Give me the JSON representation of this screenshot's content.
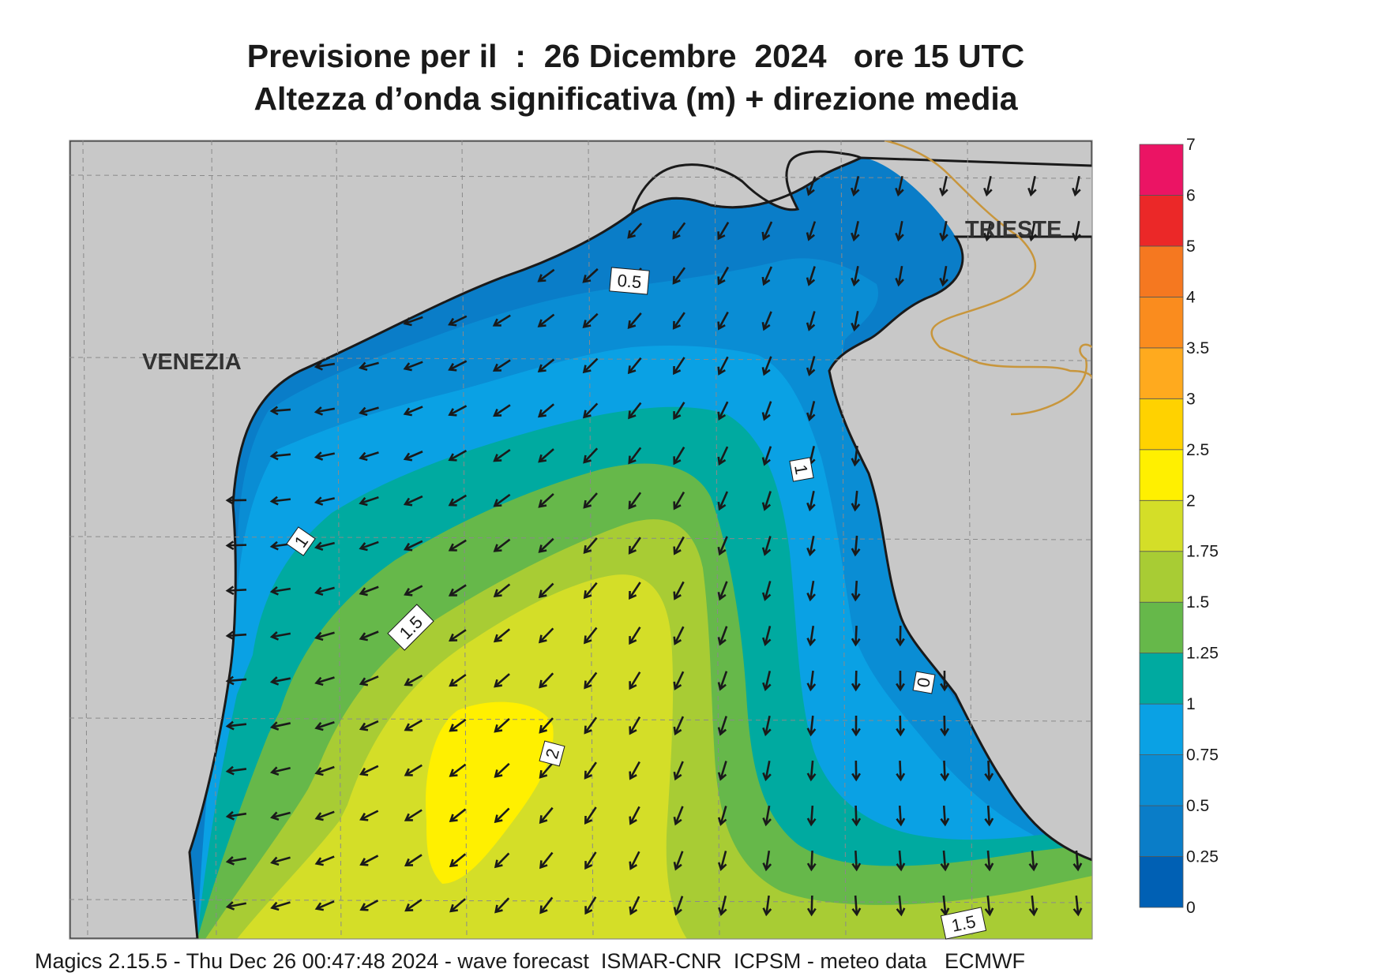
{
  "title_line1": "Previsione per il  :  26 Dicembre  2024   ore 15 UTC",
  "title_line2": "Altezza d’onda significativa (m) + direzione media",
  "footer": "Magics 2.15.5 - Thu Dec 26 00:47:48 2024 - wave forecast  ISMAR-CNR  ICPSM - meteo data   ECMWF",
  "cities": [
    {
      "name": "VENEZIA"
    },
    {
      "name": "TRIESTE"
    }
  ],
  "contour_labels": [
    "0.5",
    "1",
    "1",
    "1.5",
    "2",
    "1.5",
    "0"
  ],
  "legend": {
    "labels": [
      "0",
      "0.25",
      "0.5",
      "0.75",
      "1",
      "1.25",
      "1.5",
      "1.75",
      "2",
      "2.5",
      "3",
      "3.5",
      "4",
      "5",
      "6",
      "7"
    ],
    "colors": [
      "#0060b4",
      "#0a7dc8",
      "#0a8dd4",
      "#0aa1e4",
      "#00aaa0",
      "#66b84a",
      "#a8cc34",
      "#d4de28",
      "#fff000",
      "#ffd200",
      "#ffaa1e",
      "#fa8c1e",
      "#f57820",
      "#eb2828",
      "#eb1464"
    ]
  },
  "colors": {
    "land": "#c8c8c8",
    "coastline": "#1a1a1a",
    "border": "#c8963c",
    "grid": "#8a8a8a",
    "arrow": "#1a1a1a"
  }
}
